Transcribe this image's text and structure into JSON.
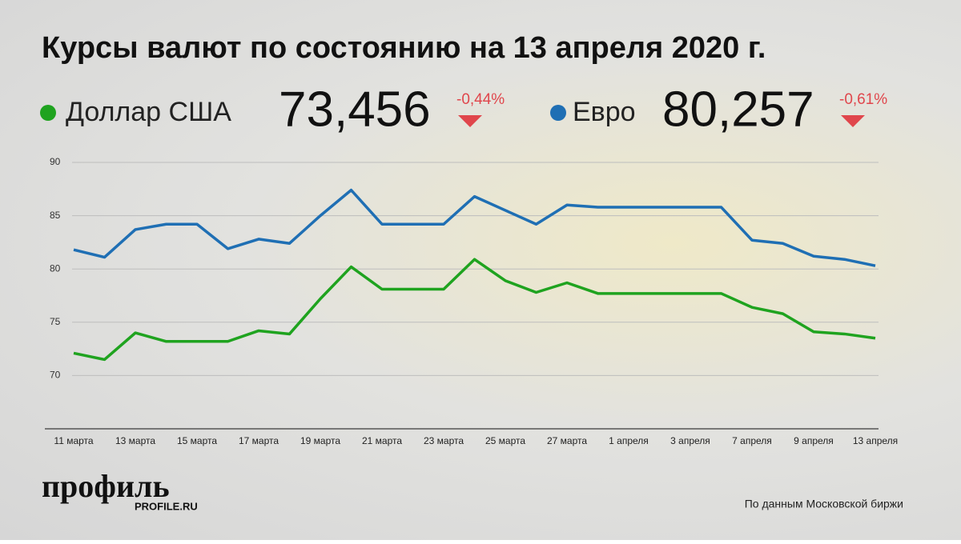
{
  "chart_data": {
    "type": "line",
    "title": "Курсы валют по состоянию на 13 апреля 2020 г.",
    "categories": [
      "11 марта",
      null,
      "13 марта",
      null,
      "15 марта",
      null,
      "17 марта",
      null,
      "19 марта",
      null,
      "21 марта",
      null,
      "23 марта",
      null,
      "25 марта",
      null,
      "27 марта",
      null,
      "1 апреля",
      null,
      "3 апреля",
      null,
      "7 апреля",
      null,
      "9 апреля",
      null,
      "13 апреля"
    ],
    "series": [
      {
        "name": "Доллар США",
        "color": "#1fa31f",
        "current": "73,456",
        "change": "-0,44%",
        "values": [
          72.1,
          71.5,
          74.0,
          73.2,
          73.2,
          73.2,
          74.2,
          73.9,
          77.2,
          80.2,
          78.1,
          78.1,
          78.1,
          80.9,
          78.9,
          77.8,
          78.7,
          77.7,
          77.7,
          77.7,
          77.7,
          77.7,
          76.4,
          75.8,
          74.1,
          73.9,
          73.5
        ]
      },
      {
        "name": "Евро",
        "color": "#1f6fb4",
        "current": "80,257",
        "change": "-0,61%",
        "values": [
          81.8,
          81.1,
          83.7,
          84.2,
          84.2,
          81.9,
          82.8,
          82.4,
          85.0,
          87.4,
          84.2,
          84.2,
          84.2,
          86.8,
          85.5,
          84.2,
          86.0,
          85.8,
          85.8,
          85.8,
          85.8,
          85.8,
          82.7,
          82.4,
          81.2,
          80.9,
          80.3
        ]
      }
    ],
    "ylim": [
      65,
      90
    ],
    "yticks": [
      70,
      75,
      80,
      85,
      90
    ],
    "grid": true,
    "source": "По данным Московской биржи"
  },
  "brand": {
    "name": "профиль",
    "site": "PROFILE.RU"
  }
}
